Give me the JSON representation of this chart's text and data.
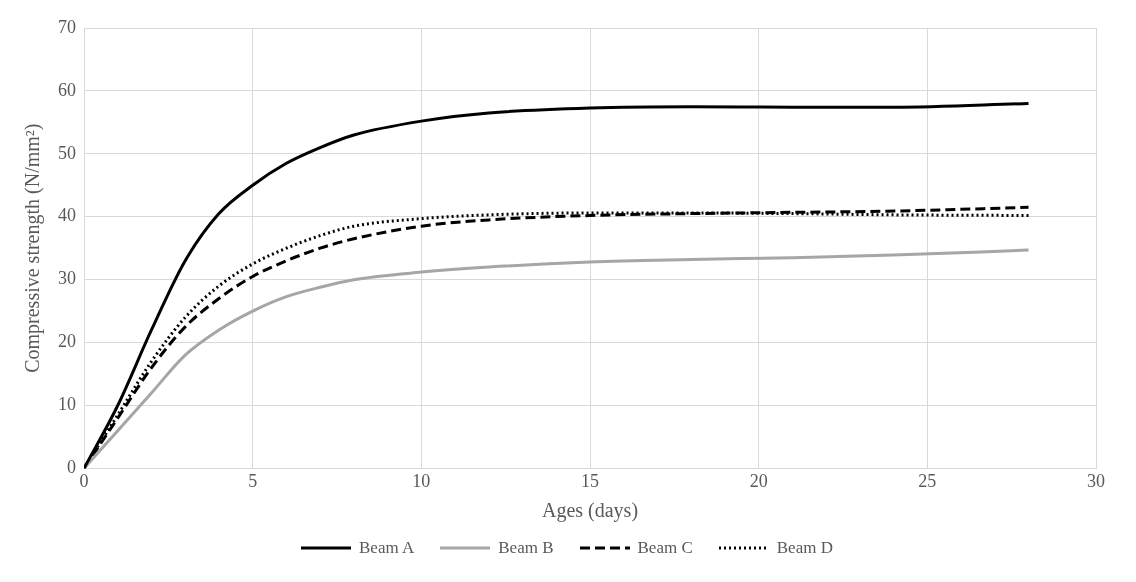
{
  "chart_data": {
    "type": "line",
    "xlabel": "Ages (days)",
    "ylabel": "Compressive strength (N/mm²)",
    "xlim": [
      0,
      30
    ],
    "xticks": [
      0,
      5,
      10,
      15,
      20,
      25,
      30
    ],
    "ylim": [
      0,
      70
    ],
    "yticks": [
      0,
      10,
      20,
      30,
      40,
      50,
      60,
      70
    ],
    "grid": true,
    "legend": "bottom",
    "marker": "none",
    "x": [
      0,
      1,
      2,
      3,
      4,
      5,
      6,
      7,
      8,
      10,
      12,
      15,
      18,
      21,
      24,
      28
    ],
    "series": [
      {
        "name": "Beam A",
        "color": "#000000",
        "line_style": "solid",
        "values": [
          0,
          10,
          22,
          33,
          40.5,
          45,
          48.5,
          51,
          53,
          55.2,
          56.5,
          57.3,
          57.5,
          57.4,
          57.4,
          58
        ]
      },
      {
        "name": "Beam B",
        "color": "#a6a6a6",
        "line_style": "solid",
        "values": [
          0,
          6,
          12,
          18,
          22,
          25,
          27.3,
          28.8,
          30,
          31.2,
          32,
          32.8,
          33.2,
          33.5,
          33.9,
          34.7
        ]
      },
      {
        "name": "Beam C",
        "color": "#000000",
        "line_style": "dashed",
        "values": [
          0,
          8,
          16,
          22.5,
          27,
          30.5,
          33,
          35,
          36.5,
          38.5,
          39.5,
          40.2,
          40.5,
          40.7,
          40.9,
          41.5
        ]
      },
      {
        "name": "Beam D",
        "color": "#000000",
        "line_style": "dotted",
        "values": [
          0,
          8.5,
          17,
          24,
          29,
          32.5,
          35,
          37,
          38.5,
          39.7,
          40.3,
          40.6,
          40.6,
          40.5,
          40.3,
          40.2
        ]
      }
    ]
  }
}
